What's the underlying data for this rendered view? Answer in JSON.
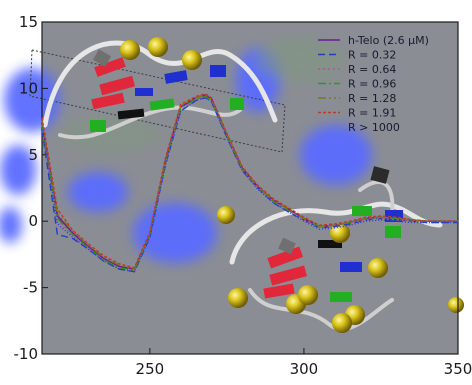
{
  "chart_data": {
    "type": "line",
    "title": "",
    "xlabel": "",
    "ylabel": "",
    "xlim": [
      215,
      350
    ],
    "ylim": [
      -10,
      15
    ],
    "x_ticks": [
      250,
      300,
      350
    ],
    "y_ticks": [
      15,
      10,
      5,
      0,
      -5,
      -10
    ],
    "grid": false,
    "legend_position": "top-right",
    "x": [
      215,
      220,
      225,
      230,
      235,
      240,
      245,
      250,
      255,
      260,
      265,
      268,
      270,
      275,
      280,
      285,
      290,
      295,
      300,
      305,
      310,
      315,
      320,
      325,
      330,
      335,
      340,
      345,
      350
    ],
    "series": [
      {
        "name": "h-Telo (2.6 μM)",
        "color": "#6a1b9a",
        "dash": "",
        "values": [
          7.4,
          0.4,
          -0.9,
          -1.9,
          -2.8,
          -3.4,
          -3.6,
          -1.0,
          4.5,
          8.6,
          9.3,
          9.5,
          9.2,
          6.5,
          4.0,
          2.6,
          1.6,
          0.9,
          0.2,
          -0.4,
          -0.3,
          -0.1,
          0.2,
          0.3,
          0.2,
          0.1,
          0.0,
          0.0,
          0.0
        ]
      },
      {
        "name": "R = 0.32",
        "color": "#1f3fbf",
        "dash": "7,4",
        "values": [
          6.9,
          -1.0,
          -1.3,
          -2.1,
          -3.0,
          -3.6,
          -3.8,
          -1.2,
          4.2,
          8.3,
          9.1,
          9.3,
          9.0,
          6.3,
          3.8,
          2.5,
          1.4,
          0.7,
          0.1,
          -0.5,
          -0.4,
          -0.2,
          0.1,
          0.2,
          0.1,
          0.0,
          -0.1,
          -0.1,
          -0.1
        ]
      },
      {
        "name": "R = 0.64",
        "color": "#c0509a",
        "dash": "2,3",
        "values": [
          7.2,
          0.0,
          -1.1,
          -2.0,
          -2.9,
          -3.5,
          -3.7,
          -1.1,
          4.3,
          8.4,
          9.2,
          9.4,
          9.1,
          6.4,
          3.9,
          2.5,
          1.5,
          0.8,
          0.1,
          -0.5,
          -0.3,
          -0.1,
          0.1,
          0.2,
          0.1,
          0.0,
          0.0,
          0.0,
          0.0
        ]
      },
      {
        "name": "R = 0.96",
        "color": "#3d8f1f",
        "dash": "8,3,2,3",
        "values": [
          7.3,
          0.2,
          -1.0,
          -2.0,
          -2.9,
          -3.5,
          -3.7,
          -1.0,
          4.4,
          8.5,
          9.2,
          9.4,
          9.1,
          6.4,
          3.9,
          2.6,
          1.5,
          0.8,
          0.2,
          -0.4,
          -0.3,
          -0.1,
          0.2,
          0.3,
          0.2,
          0.1,
          0.0,
          0.0,
          0.0
        ]
      },
      {
        "name": "R = 1.28",
        "color": "#7a7a1a",
        "dash": "8,3,2,3,2,3",
        "values": [
          7.6,
          0.6,
          -0.8,
          -1.8,
          -2.7,
          -3.3,
          -3.6,
          -0.9,
          4.6,
          8.7,
          9.3,
          9.5,
          9.2,
          6.6,
          4.0,
          2.6,
          1.6,
          0.9,
          0.2,
          -0.4,
          -0.3,
          -0.1,
          0.2,
          0.3,
          0.2,
          0.1,
          0.0,
          0.0,
          0.0
        ]
      },
      {
        "name": "R = 1.91",
        "color": "#c0392b",
        "dash": "3,2",
        "values": [
          7.8,
          0.9,
          -0.7,
          -1.7,
          -2.6,
          -3.2,
          -3.5,
          -0.8,
          4.7,
          8.8,
          9.4,
          9.6,
          9.3,
          6.6,
          4.1,
          2.7,
          1.7,
          1.0,
          0.3,
          -0.3,
          -0.2,
          0.0,
          0.3,
          0.4,
          0.3,
          0.1,
          0.0,
          0.0,
          0.0
        ]
      },
      {
        "name": "R > 1000",
        "color": "#2b3fd6",
        "dash": "1,2",
        "values": [
          7.1,
          -0.2,
          -1.2,
          -2.1,
          -3.0,
          -3.6,
          -3.8,
          -1.2,
          4.2,
          8.3,
          9.1,
          9.3,
          9.0,
          6.3,
          3.8,
          2.4,
          1.4,
          0.7,
          0.0,
          -0.6,
          -0.5,
          -0.3,
          0.0,
          0.1,
          0.0,
          -0.1,
          -0.1,
          -0.1,
          -0.1
        ]
      }
    ]
  },
  "theme": {
    "panel_color": "#8a8d94",
    "blob_color": "#5a6cff",
    "accent_red": "#e0283a",
    "accent_blue": "#1f2fd0",
    "accent_green": "#22b022",
    "accent_yellow": "#d8c21a",
    "ribbon_color": "#e0e0e0"
  },
  "decor": {
    "molecule_icon": "g-quadruplex-molecule-icon",
    "ion_icon": "metal-ion-sphere-icon"
  }
}
